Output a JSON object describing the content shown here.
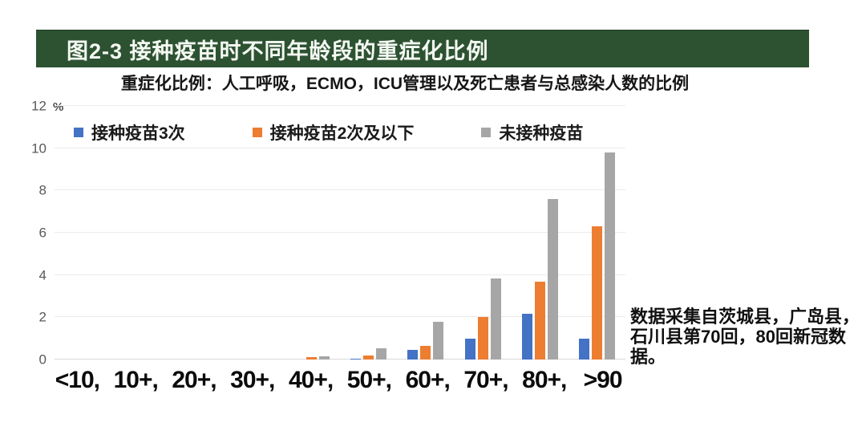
{
  "header": {
    "title": "图2-3 接种疫苗时不同年龄段的重症化比例",
    "bg_color": "#2D5232",
    "text_color": "#F4F8F2"
  },
  "subtitle": "重症化比例：人工呼吸，ECMO，ICU管理以及死亡患者与总感染人数的比例",
  "chart_data": {
    "type": "bar",
    "title": "图2-3 接种疫苗时不同年龄段的重症化比例",
    "subtitle": "重症化比例：人工呼吸，ECMO，ICU管理以及死亡患者与总感染人数的比例",
    "categories": [
      "<10",
      "10+",
      "20+",
      "30+",
      "40+",
      "50+",
      "60+",
      "70+",
      "80+",
      ">90"
    ],
    "x_tick_labels": [
      "<10,",
      "10+,",
      "20+,",
      "30+,",
      "40+,",
      "50+,",
      "60+,",
      "70+,",
      "80+,",
      ">90"
    ],
    "series": [
      {
        "name": "接种疫苗3次",
        "color": "#4472C4",
        "values": [
          0,
          0,
          0,
          0,
          0,
          0.05,
          0.45,
          1.0,
          2.15,
          1.0
        ]
      },
      {
        "name": "接种疫苗2次及以下",
        "color": "#ED7D31",
        "values": [
          0,
          0,
          0,
          0,
          0.1,
          0.2,
          0.65,
          2.0,
          3.7,
          6.3
        ]
      },
      {
        "name": "未接种疫苗",
        "color": "#A6A6A6",
        "values": [
          0,
          0,
          0,
          0,
          0.15,
          0.55,
          1.8,
          3.85,
          7.6,
          9.8
        ]
      }
    ],
    "unit_label": "%",
    "ylim": [
      0,
      12
    ],
    "yticks": [
      0,
      2,
      4,
      6,
      8,
      10,
      12
    ],
    "grid": true,
    "legend_position": "top-left"
  },
  "annotation": {
    "text": "数据采集自茨城县，广岛县，石川县第70回，80回新冠数据。"
  }
}
